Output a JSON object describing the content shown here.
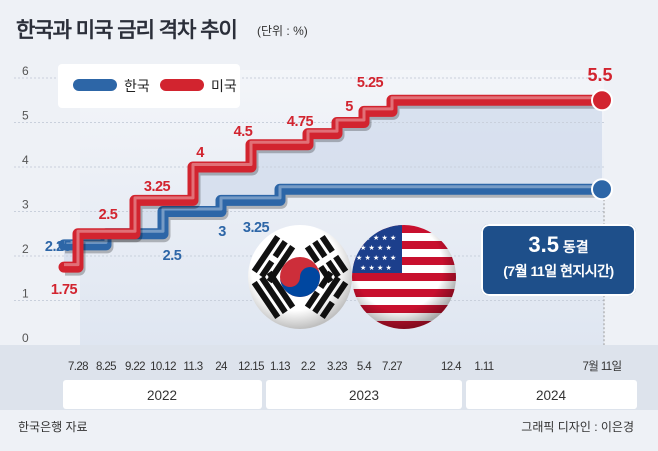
{
  "header": {
    "title": "한국과 미국 금리 격차 추이",
    "unit": "(단위 : %)"
  },
  "legend": [
    {
      "name": "한국",
      "color": "#2d66a7"
    },
    {
      "name": "미국",
      "color": "#d2242f"
    }
  ],
  "chart_data": {
    "type": "line",
    "step": true,
    "ylim": [
      0,
      6
    ],
    "y_ticks": [
      "0",
      "1",
      "2",
      "3",
      "4",
      "5",
      "6"
    ],
    "x_ticks": [
      "7.28",
      "8.25",
      "9.22",
      "10.12",
      "11.3",
      "11.24",
      "12.15",
      "1.13",
      "2.2",
      "3.23",
      "5.4",
      "7.27",
      "12.4",
      "1.11",
      "7월 11일"
    ],
    "x_tick_labels": [
      "7.28",
      "8.25",
      "9.22",
      "10.12",
      "11.3",
      "24",
      "12.15",
      "1.13",
      "2.2",
      "3.23",
      "5.4",
      "7.27",
      "12.4",
      "1.11",
      "7월 11일"
    ],
    "years": [
      "2022",
      "2023",
      "2024"
    ],
    "series": [
      {
        "name": "한국",
        "color": "#2d66a7",
        "x": [
          "2022-07-13",
          "2022-08-25",
          "2022-10-12",
          "2022-11-24",
          "2023-01-13",
          "2024-07-11"
        ],
        "values": [
          2.25,
          2.5,
          3.0,
          3.25,
          3.5,
          3.5
        ]
      },
      {
        "name": "미국",
        "color": "#d2242f",
        "x": [
          "2022-07-13",
          "2022-07-28",
          "2022-09-22",
          "2022-11-03",
          "2022-12-15",
          "2023-02-02",
          "2023-03-23",
          "2023-05-04",
          "2023-07-27",
          "2024-07-11"
        ],
        "values": [
          1.75,
          2.5,
          3.25,
          4.0,
          4.5,
          4.75,
          5.0,
          5.25,
          5.5,
          5.5
        ]
      }
    ],
    "point_labels": {
      "kr": [
        "2.25",
        "2.5",
        "3",
        "3.25"
      ],
      "us": [
        "1.75",
        "2.5",
        "3.25",
        "4",
        "4.5",
        "4.75",
        "5",
        "5.25",
        "5.5"
      ]
    }
  },
  "callout": {
    "value": "3.5",
    "word": "동결",
    "sub": "(7월 11일 현지시간)"
  },
  "footer": {
    "source": "한국은행 자료",
    "credit": "그래픽 디자인 : 이은경"
  }
}
